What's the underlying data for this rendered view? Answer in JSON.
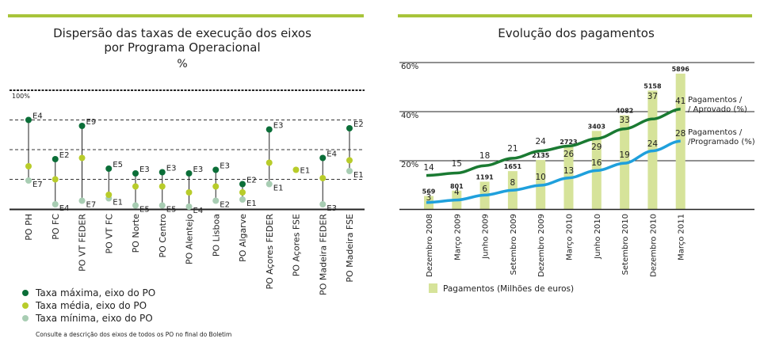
{
  "colors": {
    "accent": "#a8c43a",
    "max": "#0b6e38",
    "mean": "#b8cc2a",
    "min": "#a8cdb3",
    "approved_line": "#1a7a32",
    "programmed_line": "#1fa0dc",
    "bars": "#d6e39a"
  },
  "chart_data": [
    {
      "type": "scatter",
      "title": "Dispersão das taxas de execução dos eixos",
      "subtitle": "por Programa Operacional",
      "unit": "%",
      "ylim": [
        0,
        100
      ],
      "y_top_label": "100%",
      "grid": true,
      "categories": [
        "PO PH",
        "PO FC",
        "PO VT FEDER",
        "PO VT FC",
        "PO Norte",
        "PO Centro",
        "PO Alentejo",
        "PO Lisboa",
        "PO Algarve",
        "PO Açores FEDER",
        "PO Açores FSE",
        "PO Madeira FEDER",
        "PO Madeira FSE"
      ],
      "series": [
        {
          "name": "Taxa máxima, eixo do PO",
          "values": [
            75,
            42,
            70,
            34,
            30,
            31,
            30,
            33,
            21,
            67,
            null,
            43,
            68
          ],
          "labels": [
            "E4",
            "E2",
            "E9",
            "E5",
            "E3",
            "E3",
            "E3",
            "E3",
            "E2",
            "E3",
            null,
            "E4",
            "E2"
          ]
        },
        {
          "name": "Taxa média, eixo do PO",
          "values": [
            36,
            25,
            43,
            12,
            19,
            19,
            14,
            19,
            14,
            39,
            33,
            26,
            41
          ],
          "labels": [
            null,
            null,
            null,
            null,
            null,
            null,
            null,
            null,
            null,
            null,
            "E1",
            null,
            null
          ]
        },
        {
          "name": "Taxa mínima, eixo do PO",
          "values": [
            24,
            4,
            7,
            9,
            3,
            3,
            2,
            7,
            8,
            21,
            null,
            4,
            32
          ],
          "labels": [
            "E7",
            "E4",
            "E7",
            "E1",
            "E5",
            "E5",
            "E4",
            "E2",
            "E1",
            "E1",
            null,
            "E3",
            "E1"
          ]
        }
      ],
      "legend_position": "bottom-left",
      "note": "Consulte a descrição dos eixos de todos os PO no final do Boletim"
    },
    {
      "type": "bar+line",
      "title": "Evolução dos pagamentos",
      "categories": [
        "Dezembro 2008",
        "Março 2009",
        "Junho 2009",
        "Setembro 2009",
        "Dezembro 2009",
        "Março 2010",
        "Junho 2010",
        "Setembro 2010",
        "Dezembro 2010",
        "Março 2011"
      ],
      "y_ticks": [
        "20%",
        "40%",
        "60%"
      ],
      "ylim": [
        0,
        60
      ],
      "grid": true,
      "bars": {
        "name": "Pagamentos (Milhões de euros)",
        "values": [
          569,
          801,
          1191,
          1651,
          2135,
          2723,
          3403,
          4082,
          5158,
          5896
        ]
      },
      "series": [
        {
          "name": "Pagamentos / / Aprovado (%)",
          "name_lines": [
            "Pagamentos /",
            "/ Aprovado (%)"
          ],
          "values": [
            14,
            15,
            18,
            21,
            24,
            26,
            29,
            33,
            37,
            41
          ]
        },
        {
          "name": "Pagamentos / /Programado (%)",
          "name_lines": [
            "Pagamentos /",
            "/Programado (%)"
          ],
          "values": [
            3,
            4,
            6,
            8,
            10,
            13,
            16,
            19,
            24,
            28
          ]
        }
      ],
      "legend_position": "bottom-left"
    }
  ]
}
